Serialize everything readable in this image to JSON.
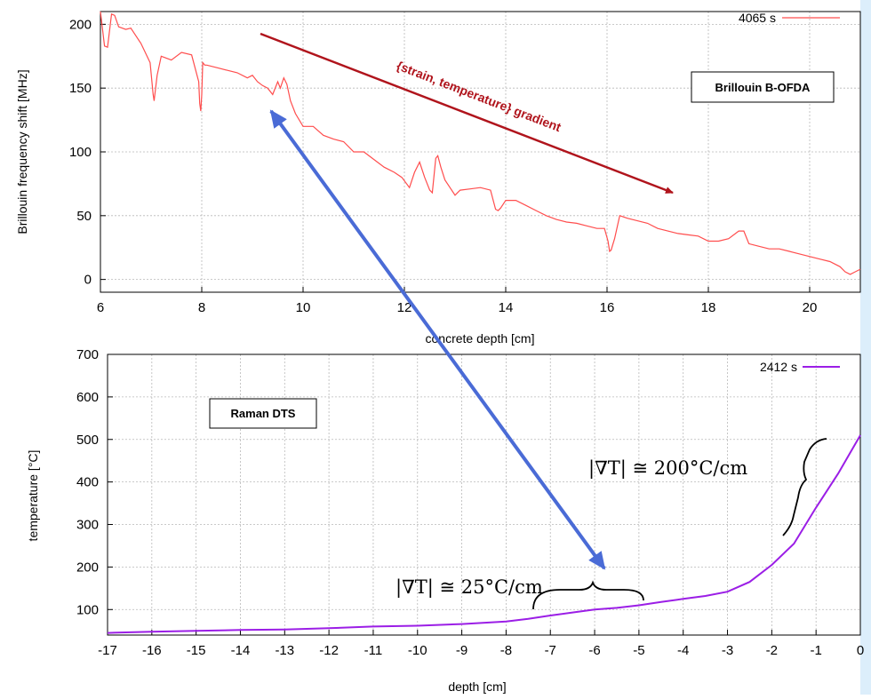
{
  "colors": {
    "brillouin_series": "#ff4d4d",
    "raman_series": "#9b1ee6",
    "strain_arrow": "#b0141c",
    "link_arrow": "#4a6bd6",
    "side_strip": "#dceefb"
  },
  "chart_data": [
    {
      "type": "line",
      "name": "brillouin",
      "ylabel": "Brillouin frequency shift [MHz]",
      "xlabel": "concrete depth [cm]",
      "xlim": [
        6,
        21
      ],
      "ylim": [
        -10,
        210
      ],
      "xticks": [
        6,
        8,
        10,
        12,
        14,
        16,
        18,
        20
      ],
      "yticks": [
        0,
        50,
        100,
        150,
        200
      ],
      "grid": true,
      "legend_position": "top-right",
      "series": [
        {
          "name": "4065 s",
          "x": [
            6.0,
            6.08,
            6.14,
            6.22,
            6.28,
            6.36,
            6.5,
            6.6,
            6.8,
            6.98,
            7.04,
            7.06,
            7.12,
            7.2,
            7.4,
            7.6,
            7.8,
            7.94,
            7.96,
            7.98,
            8.0,
            8.02,
            8.06,
            8.1,
            8.3,
            8.5,
            8.7,
            8.9,
            9.0,
            9.1,
            9.2,
            9.3,
            9.4,
            9.5,
            9.55,
            9.62,
            9.68,
            9.75,
            9.85,
            10.0,
            10.2,
            10.4,
            10.6,
            10.8,
            11.0,
            11.2,
            11.4,
            11.6,
            11.8,
            11.95,
            12.1,
            12.2,
            12.3,
            12.4,
            12.5,
            12.55,
            12.62,
            12.66,
            12.72,
            12.8,
            12.9,
            13.0,
            13.1,
            13.3,
            13.5,
            13.7,
            13.8,
            13.85,
            13.9,
            14.0,
            14.2,
            14.4,
            14.6,
            14.8,
            15.0,
            15.2,
            15.4,
            15.6,
            15.8,
            15.95,
            16.02,
            16.05,
            16.08,
            16.15,
            16.25,
            16.4,
            16.6,
            16.8,
            17.0,
            17.2,
            17.4,
            17.6,
            17.8,
            18.0,
            18.2,
            18.4,
            18.6,
            18.7,
            18.8,
            19.0,
            19.2,
            19.4,
            19.6,
            19.8,
            20.0,
            20.2,
            20.4,
            20.6,
            20.7,
            20.8,
            20.9,
            21.0
          ],
          "values": [
            210,
            183,
            182,
            208,
            207,
            198,
            196,
            197,
            185,
            170,
            145,
            140,
            160,
            175,
            172,
            178,
            176,
            155,
            138,
            132,
            145,
            170,
            168,
            168,
            166,
            164,
            162,
            158,
            160,
            155,
            152,
            150,
            145,
            155,
            150,
            158,
            153,
            140,
            130,
            120,
            120,
            113,
            110,
            108,
            100,
            100,
            94,
            88,
            84,
            80,
            72,
            84,
            92,
            80,
            70,
            68,
            95,
            97,
            88,
            78,
            72,
            66,
            70,
            71,
            72,
            70,
            55,
            54,
            56,
            62,
            62,
            58,
            54,
            50,
            47,
            45,
            44,
            42,
            40,
            40,
            30,
            22,
            23,
            32,
            50,
            48,
            46,
            44,
            40,
            38,
            36,
            35,
            34,
            30,
            30,
            32,
            38,
            38,
            28,
            26,
            24,
            24,
            22,
            20,
            18,
            16,
            14,
            10,
            6,
            4,
            6,
            8
          ]
        }
      ],
      "annotations": [
        "{strain, temperature} gradient",
        "Brillouin B-OFDA"
      ]
    },
    {
      "type": "line",
      "name": "raman",
      "ylabel": "temperature [°C]",
      "xlabel": "depth [cm]",
      "xlim": [
        -17,
        0
      ],
      "ylim": [
        40,
        700
      ],
      "xticks": [
        -17,
        -16,
        -15,
        -14,
        -13,
        -12,
        -11,
        -10,
        -9,
        -8,
        -7,
        -6,
        -5,
        -4,
        -3,
        -2,
        -1,
        0
      ],
      "yticks": [
        100,
        200,
        300,
        400,
        500,
        600,
        700
      ],
      "grid": true,
      "legend_position": "top-right",
      "series": [
        {
          "name": "2412 s",
          "x": [
            -17,
            -16,
            -15,
            -14,
            -13,
            -12,
            -11,
            -10,
            -9,
            -8,
            -7.5,
            -7,
            -6.5,
            -6,
            -5.5,
            -5,
            -4.5,
            -4,
            -3.5,
            -3,
            -2.5,
            -2,
            -1.5,
            -1,
            -0.5,
            0
          ],
          "values": [
            45,
            48,
            50,
            52,
            53,
            56,
            60,
            62,
            66,
            72,
            78,
            86,
            93,
            100,
            104,
            110,
            118,
            125,
            132,
            142,
            165,
            205,
            255,
            340,
            420,
            510
          ]
        }
      ],
      "annotations": [
        "Raman DTS",
        "|∇T| ≅ 25°C/cm",
        "|∇T| ≅ 200°C/cm"
      ]
    }
  ],
  "top": {
    "ylabel": "Brillouin frequency shift [MHz]",
    "xlabel": "concrete depth [cm]",
    "legend": "4065 s",
    "box_label": "Brillouin B-OFDA",
    "arrow_label": "{strain, temperature} gradient",
    "xticks": [
      "6",
      "8",
      "10",
      "12",
      "14",
      "16",
      "18",
      "20"
    ],
    "yticks": [
      "0",
      "50",
      "100",
      "150",
      "200"
    ]
  },
  "bottom": {
    "ylabel": "temperature [°C]",
    "xlabel": "depth [cm]",
    "legend": "2412 s",
    "box_label": "Raman DTS",
    "grad_small": "|∇T| ≅ 25°C/cm",
    "grad_large": "|∇T| ≅ 200°C/cm",
    "xticks": [
      "-17",
      "-16",
      "-15",
      "-14",
      "-13",
      "-12",
      "-11",
      "-10",
      "-9",
      "-8",
      "-7",
      "-6",
      "-5",
      "-4",
      "-3",
      "-2",
      "-1",
      "0"
    ],
    "yticks": [
      "100",
      "200",
      "300",
      "400",
      "500",
      "600",
      "700"
    ]
  }
}
